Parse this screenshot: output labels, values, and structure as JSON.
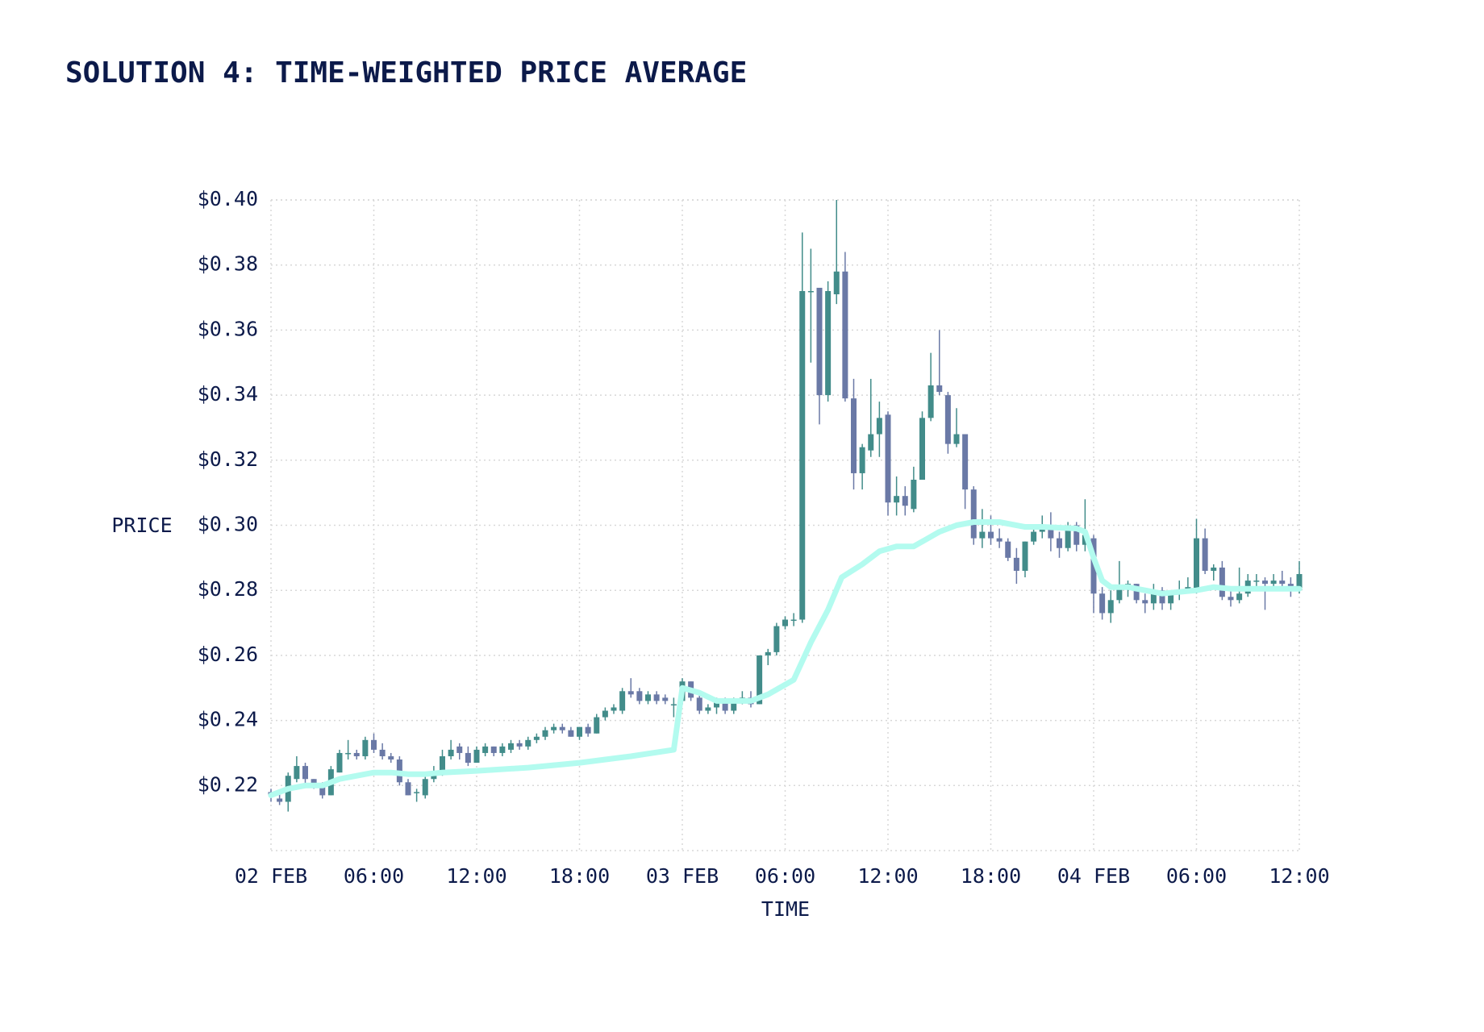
{
  "chart_data": {
    "type": "candlestick",
    "title": "SOLUTION 4: TIME-WEIGHTED PRICE AVERAGE",
    "x_label": "TIME",
    "y_label": "PRICE",
    "xlim": [
      0,
      60
    ],
    "ylim": [
      0.2,
      0.4
    ],
    "xticks": [
      {
        "value": 0,
        "label": "02 FEB"
      },
      {
        "value": 6,
        "label": "06:00"
      },
      {
        "value": 12,
        "label": "12:00"
      },
      {
        "value": 18,
        "label": "18:00"
      },
      {
        "value": 24,
        "label": "03 FEB"
      },
      {
        "value": 30,
        "label": "06:00"
      },
      {
        "value": 36,
        "label": "12:00"
      },
      {
        "value": 42,
        "label": "18:00"
      },
      {
        "value": 48,
        "label": "04 FEB"
      },
      {
        "value": 54,
        "label": "06:00"
      },
      {
        "value": 60,
        "label": "12:00"
      }
    ],
    "yticks": [
      {
        "value": 0.22,
        "label": "$0.22"
      },
      {
        "value": 0.24,
        "label": "$0.24"
      },
      {
        "value": 0.26,
        "label": "$0.26"
      },
      {
        "value": 0.28,
        "label": "$0.28"
      },
      {
        "value": 0.3,
        "label": "$0.30"
      },
      {
        "value": 0.32,
        "label": "$0.32"
      },
      {
        "value": 0.34,
        "label": "$0.34"
      },
      {
        "value": 0.36,
        "label": "$0.36"
      },
      {
        "value": 0.38,
        "label": "$0.38"
      },
      {
        "value": 0.4,
        "label": "$0.40"
      }
    ],
    "grid": true,
    "up_color": "#428c8a",
    "down_color": "#6a79a6",
    "x": [
      0,
      0.5,
      1,
      1.5,
      2,
      2.5,
      3,
      3.5,
      4,
      4.5,
      5,
      5.5,
      6,
      6.5,
      7,
      7.5,
      8,
      8.5,
      9,
      9.5,
      10,
      10.5,
      11,
      11.5,
      12,
      12.5,
      13,
      13.5,
      14,
      14.5,
      15,
      15.5,
      16,
      16.5,
      17,
      17.5,
      18,
      18.5,
      19,
      19.5,
      20,
      20.5,
      21,
      21.5,
      22,
      22.5,
      23,
      23.5,
      24,
      24.5,
      25,
      25.5,
      26,
      26.5,
      27,
      27.5,
      28,
      28.5,
      29,
      29.5,
      30,
      30.5,
      31,
      31.5,
      32,
      32.5,
      33,
      33.5,
      34,
      34.5,
      35,
      35.5,
      36,
      36.5,
      37,
      37.5,
      38,
      38.5,
      39,
      39.5,
      40,
      40.5,
      41,
      41.5,
      42,
      42.5,
      43,
      43.5,
      44,
      44.5,
      45,
      45.5,
      46,
      46.5,
      47,
      47.5,
      48,
      48.5,
      49,
      49.5,
      50,
      50.5,
      51,
      51.5,
      52,
      52.5,
      53,
      53.5,
      54,
      54.5,
      55,
      55.5,
      56,
      56.5,
      57,
      57.5,
      58,
      58.5,
      59,
      59.5,
      60
    ],
    "ohlc": [
      [
        0.218,
        0.219,
        0.215,
        0.217
      ],
      [
        0.216,
        0.218,
        0.214,
        0.215
      ],
      [
        0.215,
        0.224,
        0.212,
        0.223
      ],
      [
        0.222,
        0.229,
        0.221,
        0.226
      ],
      [
        0.226,
        0.227,
        0.22,
        0.222
      ],
      [
        0.222,
        0.222,
        0.219,
        0.22
      ],
      [
        0.22,
        0.221,
        0.216,
        0.217
      ],
      [
        0.217,
        0.226,
        0.217,
        0.225
      ],
      [
        0.224,
        0.231,
        0.224,
        0.23
      ],
      [
        0.23,
        0.234,
        0.228,
        0.23
      ],
      [
        0.23,
        0.231,
        0.228,
        0.229
      ],
      [
        0.229,
        0.235,
        0.228,
        0.234
      ],
      [
        0.234,
        0.236,
        0.23,
        0.231
      ],
      [
        0.231,
        0.233,
        0.228,
        0.229
      ],
      [
        0.229,
        0.23,
        0.227,
        0.228
      ],
      [
        0.228,
        0.229,
        0.22,
        0.221
      ],
      [
        0.221,
        0.222,
        0.217,
        0.217
      ],
      [
        0.218,
        0.219,
        0.215,
        0.218
      ],
      [
        0.217,
        0.223,
        0.216,
        0.222
      ],
      [
        0.222,
        0.226,
        0.221,
        0.223
      ],
      [
        0.224,
        0.231,
        0.223,
        0.229
      ],
      [
        0.229,
        0.234,
        0.228,
        0.231
      ],
      [
        0.232,
        0.233,
        0.228,
        0.23
      ],
      [
        0.23,
        0.232,
        0.226,
        0.227
      ],
      [
        0.227,
        0.232,
        0.227,
        0.231
      ],
      [
        0.23,
        0.233,
        0.229,
        0.232
      ],
      [
        0.232,
        0.232,
        0.229,
        0.23
      ],
      [
        0.23,
        0.233,
        0.229,
        0.232
      ],
      [
        0.231,
        0.234,
        0.23,
        0.233
      ],
      [
        0.233,
        0.234,
        0.231,
        0.232
      ],
      [
        0.232,
        0.235,
        0.231,
        0.234
      ],
      [
        0.234,
        0.236,
        0.233,
        0.235
      ],
      [
        0.235,
        0.238,
        0.234,
        0.237
      ],
      [
        0.237,
        0.239,
        0.236,
        0.238
      ],
      [
        0.238,
        0.239,
        0.236,
        0.237
      ],
      [
        0.237,
        0.238,
        0.235,
        0.235
      ],
      [
        0.235,
        0.238,
        0.234,
        0.238
      ],
      [
        0.238,
        0.239,
        0.235,
        0.236
      ],
      [
        0.236,
        0.242,
        0.236,
        0.241
      ],
      [
        0.241,
        0.244,
        0.24,
        0.243
      ],
      [
        0.243,
        0.245,
        0.242,
        0.244
      ],
      [
        0.243,
        0.25,
        0.242,
        0.249
      ],
      [
        0.249,
        0.253,
        0.247,
        0.248
      ],
      [
        0.249,
        0.25,
        0.245,
        0.246
      ],
      [
        0.246,
        0.249,
        0.245,
        0.248
      ],
      [
        0.248,
        0.249,
        0.245,
        0.246
      ],
      [
        0.247,
        0.248,
        0.245,
        0.246
      ],
      [
        0.245,
        0.247,
        0.241,
        0.245
      ],
      [
        0.246,
        0.253,
        0.245,
        0.252
      ],
      [
        0.252,
        0.252,
        0.246,
        0.247
      ],
      [
        0.247,
        0.248,
        0.242,
        0.243
      ],
      [
        0.243,
        0.245,
        0.242,
        0.244
      ],
      [
        0.244,
        0.247,
        0.242,
        0.246
      ],
      [
        0.246,
        0.247,
        0.242,
        0.243
      ],
      [
        0.243,
        0.247,
        0.242,
        0.246
      ],
      [
        0.246,
        0.249,
        0.245,
        0.247
      ],
      [
        0.247,
        0.249,
        0.244,
        0.245
      ],
      [
        0.245,
        0.26,
        0.245,
        0.26
      ],
      [
        0.26,
        0.262,
        0.257,
        0.261
      ],
      [
        0.261,
        0.27,
        0.26,
        0.269
      ],
      [
        0.269,
        0.272,
        0.268,
        0.271
      ],
      [
        0.271,
        0.273,
        0.269,
        0.271
      ],
      [
        0.271,
        0.39,
        0.27,
        0.372
      ],
      [
        0.372,
        0.385,
        0.35,
        0.372
      ],
      [
        0.373,
        0.373,
        0.331,
        0.34
      ],
      [
        0.34,
        0.375,
        0.338,
        0.372
      ],
      [
        0.371,
        0.4,
        0.368,
        0.378
      ],
      [
        0.378,
        0.384,
        0.338,
        0.339
      ],
      [
        0.339,
        0.345,
        0.311,
        0.316
      ],
      [
        0.316,
        0.325,
        0.311,
        0.324
      ],
      [
        0.323,
        0.345,
        0.321,
        0.328
      ],
      [
        0.328,
        0.338,
        0.321,
        0.333
      ],
      [
        0.334,
        0.335,
        0.303,
        0.307
      ],
      [
        0.307,
        0.315,
        0.303,
        0.309
      ],
      [
        0.309,
        0.312,
        0.303,
        0.306
      ],
      [
        0.305,
        0.318,
        0.304,
        0.314
      ],
      [
        0.314,
        0.335,
        0.314,
        0.333
      ],
      [
        0.333,
        0.353,
        0.332,
        0.343
      ],
      [
        0.343,
        0.36,
        0.34,
        0.341
      ],
      [
        0.34,
        0.341,
        0.322,
        0.325
      ],
      [
        0.325,
        0.336,
        0.324,
        0.328
      ],
      [
        0.328,
        0.328,
        0.305,
        0.311
      ],
      [
        0.311,
        0.312,
        0.294,
        0.296
      ],
      [
        0.296,
        0.305,
        0.293,
        0.298
      ],
      [
        0.298,
        0.303,
        0.294,
        0.296
      ],
      [
        0.296,
        0.299,
        0.293,
        0.295
      ],
      [
        0.295,
        0.296,
        0.289,
        0.29
      ],
      [
        0.29,
        0.293,
        0.282,
        0.286
      ],
      [
        0.286,
        0.295,
        0.284,
        0.295
      ],
      [
        0.295,
        0.3,
        0.294,
        0.298
      ],
      [
        0.298,
        0.303,
        0.296,
        0.3
      ],
      [
        0.3,
        0.304,
        0.292,
        0.296
      ],
      [
        0.296,
        0.298,
        0.29,
        0.293
      ],
      [
        0.293,
        0.301,
        0.292,
        0.3
      ],
      [
        0.3,
        0.301,
        0.292,
        0.294
      ],
      [
        0.294,
        0.308,
        0.292,
        0.297
      ],
      [
        0.296,
        0.297,
        0.273,
        0.279
      ],
      [
        0.279,
        0.281,
        0.271,
        0.273
      ],
      [
        0.273,
        0.28,
        0.27,
        0.277
      ],
      [
        0.277,
        0.289,
        0.276,
        0.281
      ],
      [
        0.281,
        0.283,
        0.278,
        0.282
      ],
      [
        0.282,
        0.282,
        0.276,
        0.277
      ],
      [
        0.277,
        0.279,
        0.273,
        0.276
      ],
      [
        0.276,
        0.282,
        0.274,
        0.28
      ],
      [
        0.28,
        0.281,
        0.274,
        0.276
      ],
      [
        0.276,
        0.28,
        0.274,
        0.279
      ],
      [
        0.279,
        0.283,
        0.277,
        0.28
      ],
      [
        0.28,
        0.284,
        0.279,
        0.281
      ],
      [
        0.28,
        0.302,
        0.279,
        0.296
      ],
      [
        0.296,
        0.299,
        0.285,
        0.286
      ],
      [
        0.286,
        0.288,
        0.283,
        0.287
      ],
      [
        0.287,
        0.289,
        0.277,
        0.278
      ],
      [
        0.278,
        0.28,
        0.275,
        0.277
      ],
      [
        0.277,
        0.287,
        0.276,
        0.279
      ],
      [
        0.279,
        0.285,
        0.278,
        0.283
      ],
      [
        0.283,
        0.285,
        0.28,
        0.283
      ],
      [
        0.283,
        0.284,
        0.274,
        0.282
      ],
      [
        0.282,
        0.285,
        0.28,
        0.283
      ],
      [
        0.283,
        0.286,
        0.281,
        0.282
      ],
      [
        0.282,
        0.284,
        0.278,
        0.281
      ],
      [
        0.28,
        0.289,
        0.279,
        0.285
      ]
    ],
    "twap": {
      "color": "#b3fbef",
      "x": [
        0,
        1,
        2,
        3,
        4,
        5,
        6,
        7,
        8,
        9,
        10,
        12,
        15,
        18,
        21,
        23.5,
        24,
        25,
        26,
        28,
        29,
        30.5,
        31.5,
        32.5,
        33.3,
        34.5,
        35.5,
        36.5,
        37.5,
        39,
        40,
        41,
        42.5,
        44,
        45,
        47,
        47.5,
        48,
        48.5,
        49,
        50,
        51,
        52,
        53,
        54,
        55,
        56,
        58,
        60
      ],
      "values": [
        0.217,
        0.219,
        0.22,
        0.22,
        0.222,
        0.223,
        0.224,
        0.224,
        0.2235,
        0.2235,
        0.224,
        0.2245,
        0.2255,
        0.227,
        0.229,
        0.231,
        0.25,
        0.2485,
        0.246,
        0.246,
        0.248,
        0.2525,
        0.264,
        0.274,
        0.284,
        0.288,
        0.292,
        0.2935,
        0.2935,
        0.298,
        0.3,
        0.301,
        0.301,
        0.2995,
        0.2995,
        0.299,
        0.298,
        0.29,
        0.283,
        0.281,
        0.281,
        0.28,
        0.279,
        0.2795,
        0.28,
        0.281,
        0.2805,
        0.2805,
        0.2805
      ]
    }
  }
}
